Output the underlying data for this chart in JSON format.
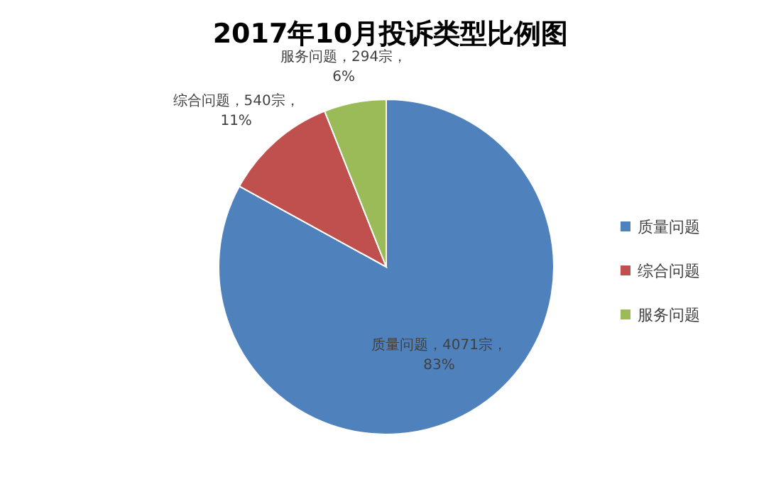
{
  "chart_data": {
    "type": "pie",
    "title": "2017年10月投诉类型比例图",
    "categories": [
      "质量问题",
      "综合问题",
      "服务问题"
    ],
    "values": [
      4071,
      540,
      294
    ],
    "colors": [
      "#4f81bd",
      "#c0504d",
      "#9bbb59"
    ],
    "value_labels": [
      "质量问题，4071宗，83%",
      "综合问题，540宗，11%",
      "服务问题，294宗，6%"
    ],
    "legend": "right"
  }
}
